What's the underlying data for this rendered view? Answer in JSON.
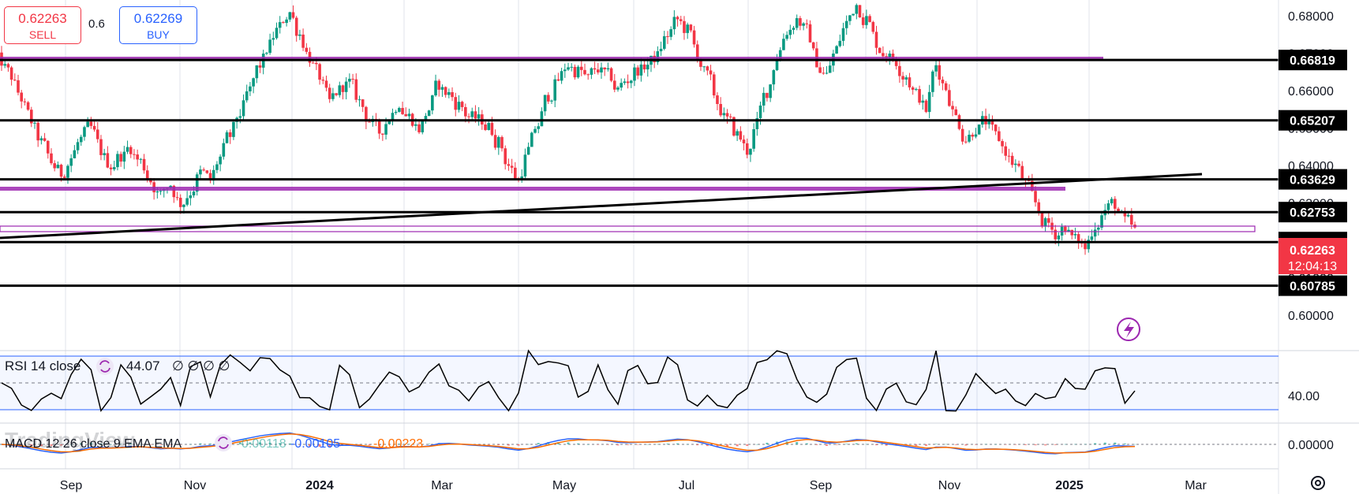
{
  "trade_panel": {
    "sell_price": "0.62263",
    "sell_label": "SELL",
    "spread": "0.6",
    "buy_price": "0.62269",
    "buy_label": "BUY"
  },
  "price_pane": {
    "axis_ticks": [
      "0.68000",
      "0.67000",
      "0.66000",
      "0.65000",
      "0.64000",
      "0.63000",
      "0.62000",
      "0.61000",
      "0.60000"
    ],
    "levels": [
      {
        "label": "0.66819",
        "value": 0.66819
      },
      {
        "label": "0.65207",
        "value": 0.65207
      },
      {
        "label": "0.63629",
        "value": 0.63629
      },
      {
        "label": "0.62753",
        "value": 0.62753
      },
      {
        "label": "0.61952",
        "value": 0.61952
      },
      {
        "label": "0.60785",
        "value": 0.60785
      }
    ],
    "last_price_label": "0.62263",
    "countdown": "12:04:13"
  },
  "rsi_pane": {
    "label": "RSI 14 close",
    "value": "44.07",
    "placeholders": "∅ ∅ ∅ ∅",
    "axis_tick": "40.00"
  },
  "macd_pane": {
    "label": "MACD 12 26 close 9 EMA EMA",
    "hist": "0.00118",
    "macd": "-0.00105",
    "signal": "-0.00223",
    "axis_tick": "0.00000"
  },
  "watermark": "TradingView",
  "time_axis": [
    "Sep",
    "Nov",
    "2024",
    "Mar",
    "May",
    "Jul",
    "Sep",
    "Nov",
    "2025",
    "Mar"
  ],
  "colors": {
    "up": "#089981",
    "down": "#f23645",
    "level": "#000000",
    "zone": "#9c27b0",
    "macd": "#2962ff",
    "signal": "#ff6d00",
    "rsi_band": "#2962ff"
  },
  "chart_data": {
    "type": "candlestick",
    "symbol_quote": "0.6",
    "x_ticks": [
      "Sep",
      "Nov",
      "2024",
      "Mar",
      "May",
      "Jul",
      "Sep",
      "Nov",
      "2025",
      "Mar"
    ],
    "ylim": [
      0.5985,
      0.6815
    ],
    "close_series": [
      0.668,
      0.664,
      0.658,
      0.652,
      0.646,
      0.641,
      0.638,
      0.642,
      0.647,
      0.65,
      0.644,
      0.64,
      0.643,
      0.645,
      0.641,
      0.636,
      0.632,
      0.635,
      0.63,
      0.633,
      0.638,
      0.636,
      0.642,
      0.648,
      0.654,
      0.66,
      0.667,
      0.672,
      0.677,
      0.681,
      0.675,
      0.669,
      0.664,
      0.657,
      0.66,
      0.662,
      0.657,
      0.652,
      0.649,
      0.653,
      0.657,
      0.653,
      0.65,
      0.655,
      0.662,
      0.659,
      0.656,
      0.653,
      0.652,
      0.65,
      0.646,
      0.64,
      0.636,
      0.644,
      0.651,
      0.659,
      0.663,
      0.667,
      0.665,
      0.663,
      0.666,
      0.664,
      0.66,
      0.663,
      0.666,
      0.667,
      0.669,
      0.675,
      0.679,
      0.676,
      0.67,
      0.664,
      0.657,
      0.652,
      0.648,
      0.644,
      0.651,
      0.66,
      0.669,
      0.676,
      0.679,
      0.676,
      0.668,
      0.664,
      0.671,
      0.678,
      0.683,
      0.679,
      0.673,
      0.67,
      0.668,
      0.664,
      0.659,
      0.655,
      0.667,
      0.661,
      0.653,
      0.647,
      0.65,
      0.652,
      0.648,
      0.644,
      0.64,
      0.635,
      0.63,
      0.624,
      0.622,
      0.624,
      0.62,
      0.618,
      0.624,
      0.628,
      0.63,
      0.625,
      0.6226
    ],
    "support_resistance": [
      0.66819,
      0.65207,
      0.63629,
      0.62753,
      0.61952,
      0.60785
    ],
    "trendline": [
      [
        0,
        0.6255
      ],
      [
        1390,
        0.6407
      ]
    ],
    "rsi": {
      "value": 44.07,
      "upper": 70,
      "middle": 50,
      "lower": 30
    },
    "macd": {
      "histogram": 0.00118,
      "macd": -0.00105,
      "signal": -0.00223
    }
  }
}
